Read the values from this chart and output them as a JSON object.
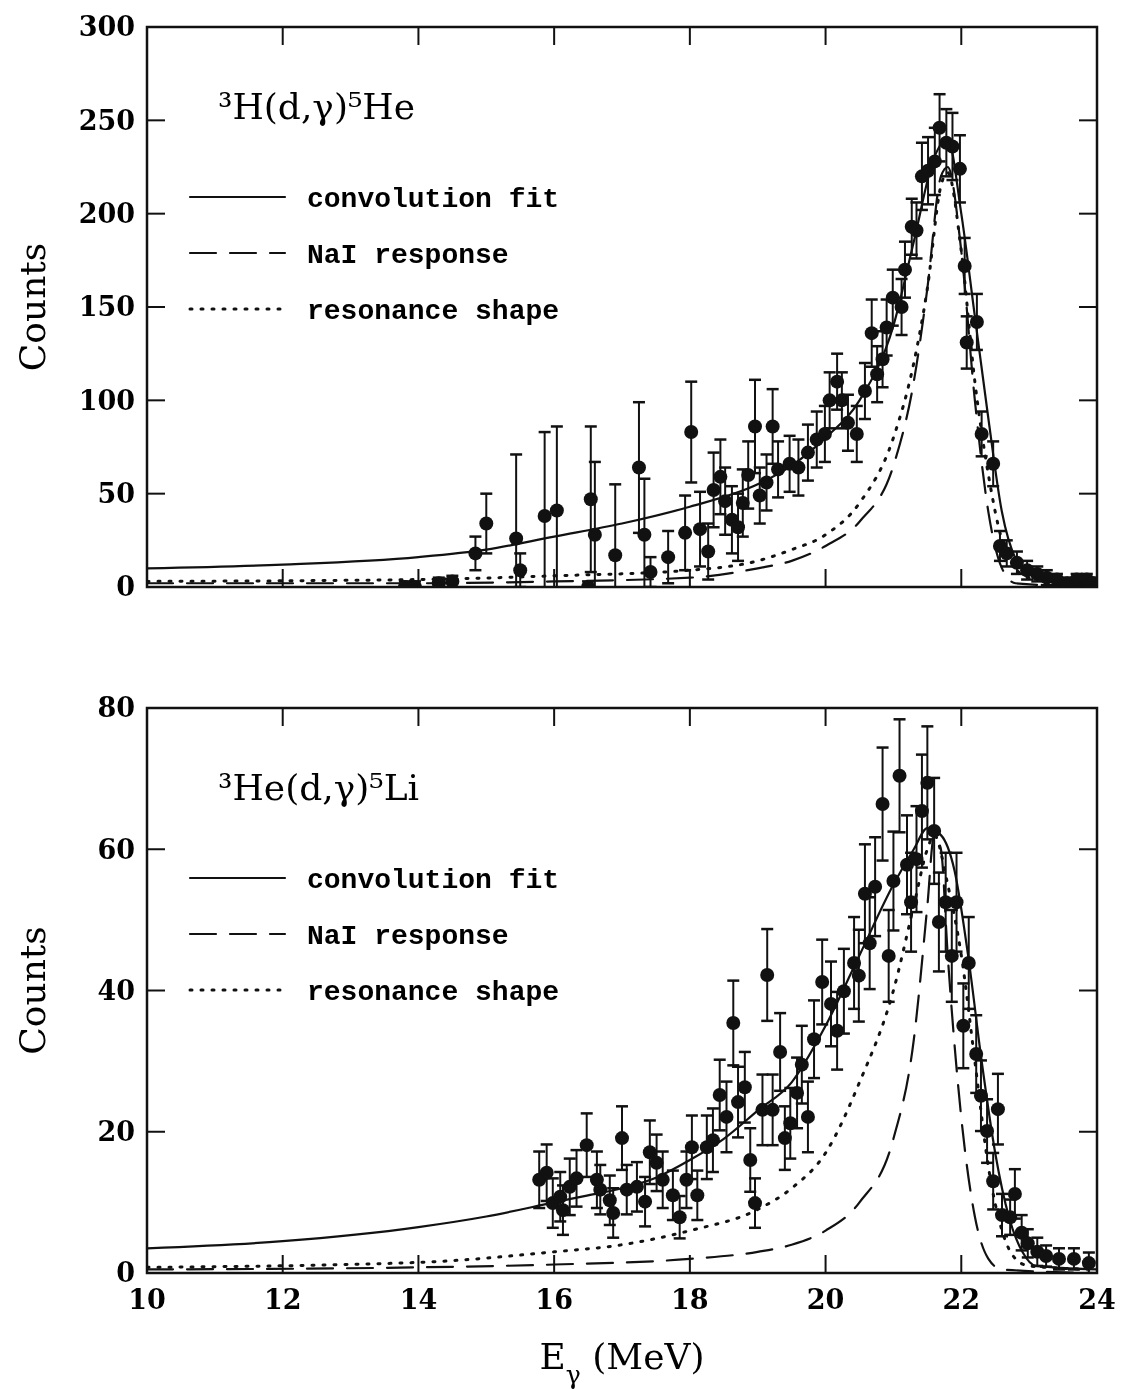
{
  "chart_data": [
    {
      "type": "scatter",
      "annotations": [
        "³H(d,γ)⁵He"
      ],
      "ylabel": "Counts",
      "xlim": [
        10,
        24
      ],
      "xticks": [
        10,
        12,
        14,
        16,
        18,
        20,
        22,
        24
      ],
      "ylim": [
        0,
        300
      ],
      "yticks": [
        0,
        50,
        100,
        150,
        200,
        250,
        300
      ],
      "tick_labels": "y",
      "grid": false,
      "legend": "top left",
      "series": [
        {
          "type": "scatter",
          "marker": "circle",
          "color": "#111111",
          "x": [
            13.8,
            13.95,
            14.3,
            14.5,
            14.84,
            15.0,
            15.44,
            15.5,
            15.86,
            16.04,
            16.5,
            16.54,
            16.6,
            16.9,
            17.25,
            17.33,
            17.42,
            17.68,
            17.93,
            18.02,
            18.15,
            18.27,
            18.35,
            18.45,
            18.52,
            18.62,
            18.71,
            18.78,
            18.86,
            18.96,
            19.03,
            19.13,
            19.22,
            19.3,
            19.47,
            19.6,
            19.74,
            19.87,
            19.99,
            20.06,
            20.17,
            20.24,
            20.33,
            20.46,
            20.58,
            20.68,
            20.76,
            20.84,
            20.9,
            20.99,
            21.12,
            21.17,
            21.27,
            21.34,
            21.42,
            21.51,
            21.61,
            21.68,
            21.78,
            21.87,
            21.98,
            22.05,
            22.08,
            22.23,
            22.3,
            22.47,
            22.57,
            22.67,
            22.82,
            22.97,
            23.12,
            23.26,
            23.41,
            23.56,
            23.7,
            23.85,
            23.94
          ],
          "values": [
            0,
            0,
            2,
            3,
            18,
            34,
            26,
            9,
            38,
            41,
            0,
            47,
            28,
            17,
            64,
            28,
            8,
            16,
            29,
            83,
            31,
            19,
            52,
            59,
            46,
            36,
            32,
            45,
            60,
            86,
            49,
            56,
            86,
            63,
            66,
            64,
            72,
            79,
            82,
            100,
            110,
            100,
            88,
            82,
            105,
            136,
            114,
            122,
            139,
            155,
            150,
            170,
            193,
            191,
            220,
            223,
            228,
            246,
            238,
            236,
            224,
            172,
            131,
            142,
            82,
            66,
            22,
            18,
            13,
            9,
            7,
            5,
            4,
            2,
            4,
            4,
            2
          ],
          "errors": [
            3,
            3,
            3,
            3,
            9,
            16,
            45,
            9,
            45,
            45,
            3,
            39,
            39,
            38,
            35,
            30,
            8,
            14,
            20,
            27,
            20,
            15,
            20,
            20,
            18,
            18,
            18,
            18,
            18,
            25,
            15,
            15,
            20,
            15,
            15,
            15,
            15,
            15,
            15,
            15,
            15,
            15,
            15,
            15,
            15,
            18,
            15,
            15,
            15,
            15,
            15,
            15,
            15,
            15,
            18,
            18,
            18,
            18,
            18,
            18,
            18,
            15,
            14,
            15,
            12,
            12,
            8,
            7,
            6,
            5,
            4,
            4,
            3,
            3,
            3,
            3,
            3
          ]
        },
        {
          "type": "line",
          "name": "convolution fit",
          "line_style": "solid",
          "color": "#111111",
          "x": [
            10,
            12,
            14,
            15,
            16,
            17,
            18,
            19,
            19.5,
            20,
            20.5,
            21,
            21.3,
            21.6,
            21.8,
            22.0,
            22.2,
            22.4,
            22.6,
            22.8,
            23,
            23.5,
            24
          ],
          "values": [
            10,
            12,
            16,
            20,
            27,
            34,
            43,
            55,
            65,
            80,
            100,
            140,
            185,
            230,
            240,
            200,
            145,
            90,
            40,
            15,
            7,
            3,
            2
          ]
        },
        {
          "type": "line",
          "name": "NaI response",
          "line_style": "dashed",
          "color": "#111111",
          "x": [
            10,
            14,
            16,
            18,
            19,
            19.5,
            20,
            20.5,
            21,
            21.3,
            21.5,
            21.7,
            21.8,
            22.0,
            22.2,
            22.4,
            22.6,
            22.8,
            24
          ],
          "values": [
            2,
            2,
            3,
            5,
            10,
            14,
            22,
            35,
            65,
            110,
            160,
            220,
            225,
            180,
            100,
            40,
            10,
            2,
            0
          ]
        },
        {
          "type": "line",
          "name": "resonance shape",
          "line_style": "dotted",
          "color": "#111111",
          "x": [
            10,
            14,
            16,
            18,
            19,
            19.5,
            20,
            20.5,
            21,
            21.3,
            21.5,
            21.7,
            21.8,
            22.0,
            22.2,
            22.4,
            22.6,
            22.8,
            23,
            24
          ],
          "values": [
            3,
            4,
            6,
            9,
            14,
            20,
            28,
            45,
            80,
            120,
            160,
            215,
            222,
            180,
            110,
            60,
            25,
            10,
            5,
            2
          ]
        }
      ]
    },
    {
      "type": "scatter",
      "annotations": [
        "³He(d,γ)⁵Li"
      ],
      "xlabel": "E$_{γ}$ (MeV)",
      "ylabel": "Counts",
      "xlim": [
        10,
        24
      ],
      "xticks": [
        10,
        12,
        14,
        16,
        18,
        20,
        22,
        24
      ],
      "ylim": [
        0,
        80
      ],
      "yticks": [
        0,
        20,
        40,
        60,
        80
      ],
      "grid": false,
      "legend": "top left",
      "series": [
        {
          "type": "scatter",
          "marker": "circle",
          "color": "#111111",
          "x": [
            15.78,
            15.89,
            15.98,
            16.09,
            16.13,
            16.23,
            16.33,
            16.48,
            16.63,
            16.68,
            16.82,
            16.87,
            17.0,
            17.07,
            17.22,
            17.34,
            17.41,
            17.51,
            17.6,
            17.75,
            17.85,
            17.95,
            18.03,
            18.11,
            18.25,
            18.34,
            18.44,
            18.54,
            18.64,
            18.71,
            18.81,
            18.89,
            18.96,
            19.07,
            19.14,
            19.22,
            19.33,
            19.4,
            19.48,
            19.58,
            19.65,
            19.74,
            19.83,
            19.95,
            20.08,
            20.17,
            20.27,
            20.42,
            20.49,
            20.58,
            20.65,
            20.73,
            20.84,
            20.93,
            21.0,
            21.09,
            21.2,
            21.26,
            21.34,
            21.42,
            21.5,
            21.6,
            21.67,
            21.77,
            21.86,
            21.93,
            22.03,
            22.11,
            22.22,
            22.29,
            22.38,
            22.47,
            22.54,
            22.6,
            22.72,
            22.79,
            22.89,
            22.98,
            23.12,
            23.25,
            23.44,
            23.66,
            23.88
          ],
          "values": [
            13.2,
            14.2,
            9.9,
            10.8,
            8.9,
            12.2,
            13.4,
            18.1,
            13.2,
            11.8,
            10.3,
            8.5,
            19.1,
            11.8,
            12.2,
            10.1,
            17.1,
            15.6,
            13.2,
            11.0,
            7.9,
            13.2,
            17.8,
            11.0,
            17.8,
            18.8,
            25.2,
            22.1,
            35.4,
            24.2,
            26.3,
            16.0,
            9.9,
            23.1,
            42.2,
            23.1,
            31.3,
            19.1,
            21.2,
            25.5,
            29.5,
            22.1,
            33.1,
            41.2,
            38.1,
            34.3,
            39.9,
            43.9,
            42.1,
            53.7,
            46.7,
            54.7,
            66.4,
            44.9,
            55.5,
            70.4,
            57.8,
            52.5,
            58.6,
            65.4,
            69.4,
            62.6,
            49.7,
            52.5,
            44.9,
            52.5,
            35.0,
            43.9,
            31.0,
            25.1,
            20.1,
            13.0,
            23.2,
            8.2,
            7.9,
            11.2,
            5.7,
            4.2,
            3.0,
            2.4,
            2.0,
            2.0,
            1.4
          ],
          "errors": [
            4,
            4,
            3.5,
            3.5,
            3.5,
            4,
            4,
            4.5,
            4,
            3.5,
            3.5,
            3.5,
            4.5,
            3.5,
            3.5,
            3.5,
            4.5,
            4,
            4,
            3.5,
            3,
            4,
            4.5,
            3.5,
            4.5,
            4.5,
            5,
            5,
            6,
            5,
            5,
            4.5,
            3.5,
            5,
            6.5,
            5,
            5.5,
            4.5,
            5,
            5,
            5.5,
            5,
            5.5,
            6,
            6,
            5.5,
            6,
            6.5,
            6.5,
            7,
            6.5,
            7,
            8,
            6.5,
            7,
            8,
            7,
            7,
            7.5,
            8,
            8,
            7.5,
            7,
            7,
            6.5,
            7,
            6,
            6.5,
            5.5,
            5,
            4.5,
            4,
            5,
            3,
            2.5,
            3.5,
            2.5,
            2,
            2,
            1.5,
            1.5,
            1.5,
            1.5
          ]
        },
        {
          "type": "line",
          "name": "convolution fit",
          "line_style": "solid",
          "color": "#111111",
          "x": [
            10,
            12,
            14,
            15,
            16,
            16.5,
            17,
            17.5,
            18,
            18.5,
            19,
            19.5,
            20,
            20.5,
            21,
            21.3,
            21.5,
            21.7,
            21.9,
            22.1,
            22.3,
            22.5,
            22.7,
            22.9,
            23.1,
            24
          ],
          "values": [
            3.5,
            4.5,
            6.5,
            8,
            10,
            11,
            12,
            13.5,
            16,
            19,
            23,
            27,
            35,
            45,
            55,
            60,
            63,
            62,
            57,
            45,
            30,
            17,
            8,
            3,
            1,
            0.5
          ]
        },
        {
          "type": "line",
          "name": "NaI response",
          "line_style": "dashed",
          "color": "#111111",
          "x": [
            10,
            14,
            16,
            18,
            19,
            19.5,
            20,
            20.5,
            21,
            21.3,
            21.5,
            21.6,
            21.7,
            21.8,
            22.0,
            22.2,
            22.4,
            22.6,
            24
          ],
          "values": [
            0.5,
            0.8,
            1.2,
            2,
            3,
            4,
            6,
            10,
            19,
            33,
            52,
            62,
            60,
            45,
            22,
            8,
            2,
            0.5,
            0
          ]
        },
        {
          "type": "line",
          "name": "resonance shape",
          "line_style": "dotted",
          "color": "#111111",
          "x": [
            10,
            14,
            16,
            17,
            18,
            19,
            19.5,
            20,
            20.5,
            21,
            21.3,
            21.5,
            21.6,
            21.8,
            22.0,
            22.2,
            22.4,
            22.6,
            22.8,
            23,
            24
          ],
          "values": [
            0.8,
            1.5,
            3,
            4,
            6,
            9,
            12,
            17,
            27,
            40,
            52,
            60,
            62,
            55,
            45,
            30,
            15,
            6,
            2,
            1,
            0.5
          ]
        }
      ]
    }
  ]
}
